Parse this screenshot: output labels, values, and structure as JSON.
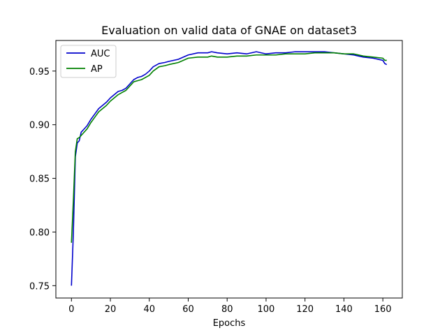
{
  "chart_data": {
    "type": "line",
    "title": "Evaluation on valid data of GNAE on dataset3",
    "xlabel": "Epochs",
    "ylabel": "",
    "xlim": [
      -8,
      170
    ],
    "ylim": [
      0.7385,
      0.9785
    ],
    "xticks": [
      0,
      20,
      40,
      60,
      80,
      100,
      120,
      140,
      160
    ],
    "yticks": [
      0.75,
      0.8,
      0.85,
      0.9,
      0.95
    ],
    "ytick_labels": [
      "0.75",
      "0.80",
      "0.85",
      "0.90",
      "0.95"
    ],
    "grid": false,
    "legend_position": "top-left",
    "series": [
      {
        "name": "AUC",
        "color": "#0000cc",
        "x": [
          0,
          1,
          2,
          3,
          4,
          5,
          6,
          8,
          10,
          12,
          14,
          16,
          18,
          20,
          22,
          24,
          26,
          28,
          30,
          32,
          34,
          36,
          38,
          40,
          42,
          45,
          48,
          50,
          55,
          60,
          65,
          70,
          72,
          75,
          80,
          85,
          90,
          95,
          100,
          105,
          110,
          115,
          120,
          125,
          130,
          135,
          140,
          145,
          150,
          155,
          160,
          161,
          162
        ],
        "y": [
          0.75,
          0.8,
          0.87,
          0.883,
          0.885,
          0.893,
          0.895,
          0.899,
          0.905,
          0.91,
          0.915,
          0.918,
          0.921,
          0.925,
          0.928,
          0.931,
          0.932,
          0.934,
          0.938,
          0.942,
          0.944,
          0.945,
          0.947,
          0.95,
          0.954,
          0.957,
          0.958,
          0.959,
          0.961,
          0.965,
          0.967,
          0.967,
          0.968,
          0.967,
          0.966,
          0.967,
          0.966,
          0.968,
          0.966,
          0.967,
          0.967,
          0.968,
          0.968,
          0.968,
          0.968,
          0.967,
          0.966,
          0.965,
          0.963,
          0.962,
          0.96,
          0.957,
          0.956
        ]
      },
      {
        "name": "AP",
        "color": "#008000",
        "x": [
          0,
          1,
          2,
          3,
          4,
          5,
          6,
          8,
          10,
          12,
          14,
          16,
          18,
          20,
          22,
          24,
          26,
          28,
          30,
          32,
          34,
          36,
          38,
          40,
          42,
          45,
          48,
          50,
          55,
          60,
          65,
          70,
          72,
          75,
          80,
          85,
          90,
          95,
          100,
          105,
          110,
          115,
          120,
          125,
          130,
          135,
          140,
          145,
          150,
          155,
          160,
          161,
          162
        ],
        "y": [
          0.79,
          0.83,
          0.875,
          0.887,
          0.888,
          0.89,
          0.892,
          0.896,
          0.902,
          0.907,
          0.912,
          0.915,
          0.918,
          0.922,
          0.925,
          0.928,
          0.93,
          0.932,
          0.936,
          0.94,
          0.941,
          0.942,
          0.944,
          0.946,
          0.95,
          0.954,
          0.955,
          0.956,
          0.958,
          0.962,
          0.963,
          0.963,
          0.964,
          0.963,
          0.963,
          0.964,
          0.964,
          0.965,
          0.965,
          0.965,
          0.966,
          0.966,
          0.966,
          0.967,
          0.967,
          0.967,
          0.966,
          0.966,
          0.964,
          0.963,
          0.962,
          0.96,
          0.96
        ]
      }
    ]
  }
}
